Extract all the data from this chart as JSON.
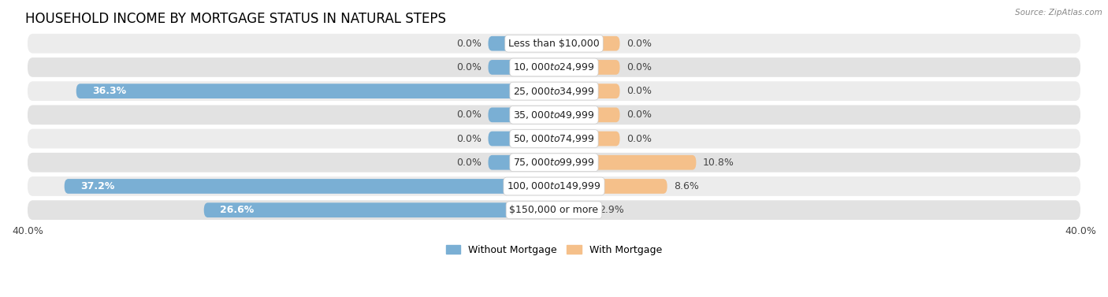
{
  "title": "HOUSEHOLD INCOME BY MORTGAGE STATUS IN NATURAL STEPS",
  "source": "Source: ZipAtlas.com",
  "categories": [
    "Less than $10,000",
    "$10,000 to $24,999",
    "$25,000 to $34,999",
    "$35,000 to $49,999",
    "$50,000 to $74,999",
    "$75,000 to $99,999",
    "$100,000 to $149,999",
    "$150,000 or more"
  ],
  "without_mortgage": [
    0.0,
    0.0,
    36.3,
    0.0,
    0.0,
    0.0,
    37.2,
    26.6
  ],
  "with_mortgage": [
    0.0,
    0.0,
    0.0,
    0.0,
    0.0,
    10.8,
    8.6,
    2.9
  ],
  "xlim": 40.0,
  "stub_size": 5.0,
  "color_without": "#7aafd4",
  "color_with": "#f5c08a",
  "row_color_even": "#ececec",
  "row_color_odd": "#e2e2e2",
  "title_fontsize": 12,
  "label_fontsize": 9,
  "value_fontsize": 9,
  "axis_fontsize": 9,
  "legend_fontsize": 9
}
